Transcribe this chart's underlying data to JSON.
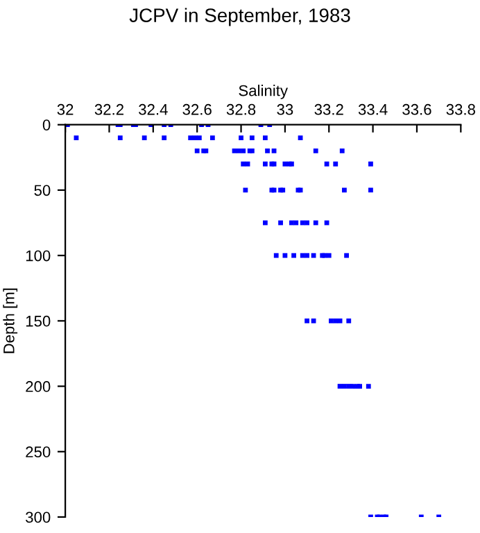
{
  "chart_data": {
    "type": "scatter",
    "title": "JCPV in September, 1983",
    "xlabel": "Salinity",
    "ylabel": "Depth [m]",
    "xlim": [
      32,
      33.8
    ],
    "xticks": [
      32,
      32.2,
      32.4,
      32.6,
      32.8,
      33,
      33.2,
      33.4,
      33.6,
      33.8
    ],
    "ylim": [
      300,
      0
    ],
    "yticks": [
      0,
      50,
      100,
      150,
      200,
      250,
      300
    ],
    "marker": "square",
    "grid": false,
    "series": [
      {
        "color": "#0000ff",
        "x": [
          32.01,
          32.24,
          32.25,
          32.31,
          32.32,
          32.39,
          32.45,
          32.48,
          32.62,
          32.65,
          32.89,
          32.93,
          32.05,
          32.25,
          32.36,
          32.45,
          32.57,
          32.59,
          32.61,
          32.67,
          32.8,
          32.85,
          32.91,
          33.07,
          32.6,
          32.63,
          32.64,
          32.77,
          32.79,
          32.81,
          32.84,
          32.85,
          32.92,
          32.95,
          33.14,
          33.26,
          32.81,
          32.83,
          32.91,
          32.94,
          32.95,
          33.0,
          33.02,
          33.03,
          33.19,
          33.23,
          33.39,
          32.82,
          32.94,
          32.95,
          32.98,
          32.99,
          33.06,
          33.07,
          33.27,
          33.39,
          32.91,
          32.98,
          33.03,
          33.05,
          33.08,
          33.1,
          33.14,
          33.19,
          32.96,
          33.0,
          33.04,
          33.08,
          33.1,
          33.13,
          33.17,
          33.18,
          33.2,
          33.28,
          33.1,
          33.13,
          33.21,
          33.23,
          33.25,
          33.29,
          33.25,
          33.27,
          33.29,
          33.31,
          33.33,
          33.34,
          33.38,
          33.39,
          33.42,
          33.43,
          33.45,
          33.46,
          33.62,
          33.7
        ],
        "values": [
          0,
          0,
          0,
          0,
          0,
          0,
          0,
          0,
          0,
          0,
          0,
          0,
          10,
          10,
          10,
          10,
          10,
          10,
          10,
          10,
          10,
          10,
          10,
          10,
          20,
          20,
          20,
          20,
          20,
          20,
          20,
          20,
          20,
          20,
          20,
          20,
          30,
          30,
          30,
          30,
          30,
          30,
          30,
          30,
          30,
          30,
          30,
          50,
          50,
          50,
          50,
          50,
          50,
          50,
          50,
          50,
          75,
          75,
          75,
          75,
          75,
          75,
          75,
          75,
          100,
          100,
          100,
          100,
          100,
          100,
          100,
          100,
          100,
          100,
          150,
          150,
          150,
          150,
          150,
          150,
          200,
          200,
          200,
          200,
          200,
          200,
          200,
          300,
          300,
          300,
          300,
          300,
          300,
          300
        ]
      }
    ]
  }
}
